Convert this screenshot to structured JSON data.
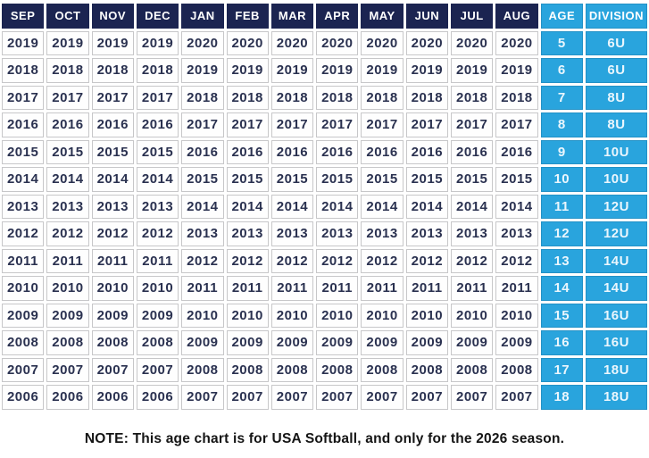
{
  "chart_data": {
    "type": "table",
    "title": "USA Softball age chart (2026 season)",
    "columns": [
      "SEP",
      "OCT",
      "NOV",
      "DEC",
      "JAN",
      "FEB",
      "MAR",
      "APR",
      "MAY",
      "JUN",
      "JUL",
      "AUG",
      "AGE",
      "DIVISION"
    ],
    "rows": [
      [
        "2019",
        "2019",
        "2019",
        "2019",
        "2020",
        "2020",
        "2020",
        "2020",
        "2020",
        "2020",
        "2020",
        "2020",
        "5",
        "6U"
      ],
      [
        "2018",
        "2018",
        "2018",
        "2018",
        "2019",
        "2019",
        "2019",
        "2019",
        "2019",
        "2019",
        "2019",
        "2019",
        "6",
        "6U"
      ],
      [
        "2017",
        "2017",
        "2017",
        "2017",
        "2018",
        "2018",
        "2018",
        "2018",
        "2018",
        "2018",
        "2018",
        "2018",
        "7",
        "8U"
      ],
      [
        "2016",
        "2016",
        "2016",
        "2016",
        "2017",
        "2017",
        "2017",
        "2017",
        "2017",
        "2017",
        "2017",
        "2017",
        "8",
        "8U"
      ],
      [
        "2015",
        "2015",
        "2015",
        "2015",
        "2016",
        "2016",
        "2016",
        "2016",
        "2016",
        "2016",
        "2016",
        "2016",
        "9",
        "10U"
      ],
      [
        "2014",
        "2014",
        "2014",
        "2014",
        "2015",
        "2015",
        "2015",
        "2015",
        "2015",
        "2015",
        "2015",
        "2015",
        "10",
        "10U"
      ],
      [
        "2013",
        "2013",
        "2013",
        "2013",
        "2014",
        "2014",
        "2014",
        "2014",
        "2014",
        "2014",
        "2014",
        "2014",
        "11",
        "12U"
      ],
      [
        "2012",
        "2012",
        "2012",
        "2012",
        "2013",
        "2013",
        "2013",
        "2013",
        "2013",
        "2013",
        "2013",
        "2013",
        "12",
        "12U"
      ],
      [
        "2011",
        "2011",
        "2011",
        "2011",
        "2012",
        "2012",
        "2012",
        "2012",
        "2012",
        "2012",
        "2012",
        "2012",
        "13",
        "14U"
      ],
      [
        "2010",
        "2010",
        "2010",
        "2010",
        "2011",
        "2011",
        "2011",
        "2011",
        "2011",
        "2011",
        "2011",
        "2011",
        "14",
        "14U"
      ],
      [
        "2009",
        "2009",
        "2009",
        "2009",
        "2010",
        "2010",
        "2010",
        "2010",
        "2010",
        "2010",
        "2010",
        "2010",
        "15",
        "16U"
      ],
      [
        "2008",
        "2008",
        "2008",
        "2008",
        "2009",
        "2009",
        "2009",
        "2009",
        "2009",
        "2009",
        "2009",
        "2009",
        "16",
        "16U"
      ],
      [
        "2007",
        "2007",
        "2007",
        "2007",
        "2008",
        "2008",
        "2008",
        "2008",
        "2008",
        "2008",
        "2008",
        "2008",
        "17",
        "18U"
      ],
      [
        "2006",
        "2006",
        "2006",
        "2006",
        "2007",
        "2007",
        "2007",
        "2007",
        "2007",
        "2007",
        "2007",
        "2007",
        "18",
        "18U"
      ]
    ]
  },
  "note": {
    "text": "NOTE: This age chart is for USA Softball, and only for the 2026 season."
  },
  "colors": {
    "header_navy": "#1b2451",
    "accent_blue": "#29a4dd",
    "year_text": "#2a3150",
    "cell_border": "#c7c7c9"
  }
}
